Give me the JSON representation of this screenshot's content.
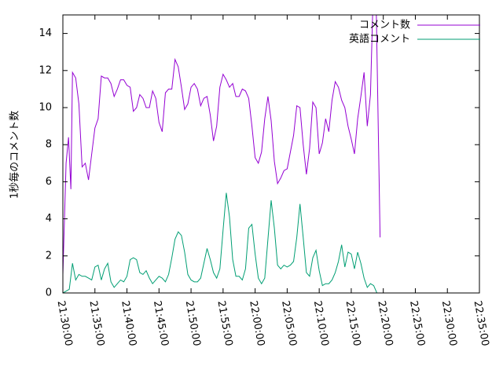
{
  "chart_data": {
    "type": "line",
    "title": "",
    "xlabel": "",
    "ylabel": "1秒毎のコメント数",
    "ylim": [
      0,
      15
    ],
    "xlim": [
      "21:30:00",
      "22:35:00"
    ],
    "grid": false,
    "legend_position": "top-right",
    "yticks": [
      "0",
      "2",
      "4",
      "6",
      "8",
      "10",
      "12",
      "14"
    ],
    "xticks": [
      "21:30:00",
      "21:35:00",
      "21:40:00",
      "21:45:00",
      "21:50:00",
      "21:55:00",
      "22:00:00",
      "22:05:00",
      "22:10:00",
      "22:15:00",
      "22:20:00",
      "22:25:00",
      "22:30:00",
      "22:35:00"
    ],
    "series": [
      {
        "name": "コメント数",
        "color": "#9400d3",
        "points": [
          [
            "21:30:00",
            1.0
          ],
          [
            "21:30:30",
            7.0
          ],
          [
            "21:30:53",
            8.4
          ],
          [
            "21:31:15",
            5.6
          ],
          [
            "21:31:30",
            11.9
          ],
          [
            "21:32:00",
            11.6
          ],
          [
            "21:32:30",
            10.2
          ],
          [
            "21:33:00",
            6.8
          ],
          [
            "21:33:30",
            7.0
          ],
          [
            "21:34:00",
            6.1
          ],
          [
            "21:34:30",
            7.5
          ],
          [
            "21:35:00",
            8.9
          ],
          [
            "21:35:30",
            9.4
          ],
          [
            "21:36:00",
            11.7
          ],
          [
            "21:36:30",
            11.6
          ],
          [
            "21:37:00",
            11.6
          ],
          [
            "21:37:30",
            11.3
          ],
          [
            "21:38:00",
            10.6
          ],
          [
            "21:38:30",
            11.0
          ],
          [
            "21:39:00",
            11.5
          ],
          [
            "21:39:30",
            11.5
          ],
          [
            "21:40:00",
            11.2
          ],
          [
            "21:40:30",
            11.1
          ],
          [
            "21:41:00",
            9.8
          ],
          [
            "21:41:30",
            10.0
          ],
          [
            "21:42:00",
            10.7
          ],
          [
            "21:42:30",
            10.5
          ],
          [
            "21:43:00",
            10.0
          ],
          [
            "21:43:30",
            10.0
          ],
          [
            "21:44:00",
            10.9
          ],
          [
            "21:44:30",
            10.5
          ],
          [
            "21:45:00",
            9.2
          ],
          [
            "21:45:30",
            8.7
          ],
          [
            "21:46:00",
            10.8
          ],
          [
            "21:46:30",
            11.0
          ],
          [
            "21:47:00",
            11.0
          ],
          [
            "21:47:30",
            12.6
          ],
          [
            "21:48:00",
            12.2
          ],
          [
            "21:48:30",
            11.1
          ],
          [
            "21:49:00",
            9.9
          ],
          [
            "21:49:30",
            10.2
          ],
          [
            "21:50:00",
            11.1
          ],
          [
            "21:50:30",
            11.3
          ],
          [
            "21:51:00",
            11.0
          ],
          [
            "21:51:30",
            10.1
          ],
          [
            "21:52:00",
            10.5
          ],
          [
            "21:52:30",
            10.6
          ],
          [
            "21:53:00",
            9.6
          ],
          [
            "21:53:30",
            8.2
          ],
          [
            "21:54:00",
            9.0
          ],
          [
            "21:54:30",
            11.1
          ],
          [
            "21:55:00",
            11.8
          ],
          [
            "21:55:30",
            11.5
          ],
          [
            "21:56:00",
            11.1
          ],
          [
            "21:56:30",
            11.3
          ],
          [
            "21:57:00",
            10.6
          ],
          [
            "21:57:30",
            10.6
          ],
          [
            "21:58:00",
            11.0
          ],
          [
            "21:58:30",
            10.9
          ],
          [
            "21:59:00",
            10.5
          ],
          [
            "21:59:30",
            9.0
          ],
          [
            "22:00:00",
            7.3
          ],
          [
            "22:00:30",
            7.0
          ],
          [
            "22:01:00",
            7.6
          ],
          [
            "22:01:30",
            9.4
          ],
          [
            "22:02:00",
            10.6
          ],
          [
            "22:02:30",
            9.3
          ],
          [
            "22:03:00",
            7.1
          ],
          [
            "22:03:30",
            5.9
          ],
          [
            "22:04:00",
            6.2
          ],
          [
            "22:04:30",
            6.6
          ],
          [
            "22:05:00",
            6.7
          ],
          [
            "22:05:30",
            7.6
          ],
          [
            "22:06:00",
            8.5
          ],
          [
            "22:06:30",
            10.1
          ],
          [
            "22:07:00",
            10.0
          ],
          [
            "22:07:30",
            8.0
          ],
          [
            "22:08:00",
            6.4
          ],
          [
            "22:08:30",
            7.8
          ],
          [
            "22:09:00",
            10.3
          ],
          [
            "22:09:30",
            10.0
          ],
          [
            "22:10:00",
            7.5
          ],
          [
            "22:10:30",
            8.1
          ],
          [
            "22:11:00",
            9.4
          ],
          [
            "22:11:30",
            8.7
          ],
          [
            "22:12:00",
            10.4
          ],
          [
            "22:12:30",
            11.4
          ],
          [
            "22:13:00",
            11.1
          ],
          [
            "22:13:30",
            10.4
          ],
          [
            "22:14:00",
            10.0
          ],
          [
            "22:14:30",
            9.0
          ],
          [
            "22:15:00",
            8.3
          ],
          [
            "22:15:30",
            7.5
          ],
          [
            "22:16:00",
            9.4
          ],
          [
            "22:16:30",
            10.6
          ],
          [
            "22:17:00",
            11.9
          ],
          [
            "22:17:30",
            9.0
          ],
          [
            "22:18:00",
            10.7
          ],
          [
            "22:18:20",
            15.0
          ],
          [
            "22:18:55",
            15.0
          ],
          [
            "22:19:30",
            3.0
          ]
        ]
      },
      {
        "name": "英語コメント",
        "color": "#009e73",
        "points": [
          [
            "21:30:00",
            0.0
          ],
          [
            "21:30:30",
            0.1
          ],
          [
            "21:31:00",
            0.2
          ],
          [
            "21:31:30",
            1.6
          ],
          [
            "21:32:00",
            0.7
          ],
          [
            "21:32:30",
            1.0
          ],
          [
            "21:33:00",
            0.9
          ],
          [
            "21:33:30",
            0.9
          ],
          [
            "21:34:00",
            0.8
          ],
          [
            "21:34:30",
            0.7
          ],
          [
            "21:35:00",
            1.4
          ],
          [
            "21:35:30",
            1.5
          ],
          [
            "21:36:00",
            0.7
          ],
          [
            "21:36:30",
            1.3
          ],
          [
            "21:37:00",
            1.6
          ],
          [
            "21:37:30",
            0.6
          ],
          [
            "21:38:00",
            0.3
          ],
          [
            "21:38:30",
            0.5
          ],
          [
            "21:39:00",
            0.7
          ],
          [
            "21:39:30",
            0.6
          ],
          [
            "21:40:00",
            0.9
          ],
          [
            "21:40:30",
            1.8
          ],
          [
            "21:41:00",
            1.9
          ],
          [
            "21:41:30",
            1.8
          ],
          [
            "21:42:00",
            1.1
          ],
          [
            "21:42:30",
            1.0
          ],
          [
            "21:43:00",
            1.2
          ],
          [
            "21:43:30",
            0.8
          ],
          [
            "21:44:00",
            0.5
          ],
          [
            "21:44:30",
            0.7
          ],
          [
            "21:45:00",
            0.9
          ],
          [
            "21:45:30",
            0.8
          ],
          [
            "21:46:00",
            0.6
          ],
          [
            "21:46:30",
            1.0
          ],
          [
            "21:47:00",
            1.9
          ],
          [
            "21:47:30",
            2.9
          ],
          [
            "21:48:00",
            3.3
          ],
          [
            "21:48:30",
            3.1
          ],
          [
            "21:49:00",
            2.2
          ],
          [
            "21:49:30",
            1.0
          ],
          [
            "21:50:00",
            0.7
          ],
          [
            "21:50:30",
            0.6
          ],
          [
            "21:51:00",
            0.6
          ],
          [
            "21:51:30",
            0.8
          ],
          [
            "21:52:00",
            1.6
          ],
          [
            "21:52:30",
            2.4
          ],
          [
            "21:53:00",
            1.8
          ],
          [
            "21:53:30",
            1.1
          ],
          [
            "21:54:00",
            0.8
          ],
          [
            "21:54:30",
            1.3
          ],
          [
            "21:55:00",
            3.4
          ],
          [
            "21:55:30",
            5.4
          ],
          [
            "21:56:00",
            4.1
          ],
          [
            "21:56:30",
            1.8
          ],
          [
            "21:57:00",
            0.9
          ],
          [
            "21:57:30",
            0.9
          ],
          [
            "21:58:00",
            0.7
          ],
          [
            "21:58:30",
            1.3
          ],
          [
            "21:59:00",
            3.5
          ],
          [
            "21:59:30",
            3.7
          ],
          [
            "22:00:00",
            2.1
          ],
          [
            "22:00:30",
            0.8
          ],
          [
            "22:01:00",
            0.5
          ],
          [
            "22:01:30",
            0.8
          ],
          [
            "22:02:00",
            2.9
          ],
          [
            "22:02:30",
            5.0
          ],
          [
            "22:03:00",
            3.5
          ],
          [
            "22:03:30",
            1.5
          ],
          [
            "22:04:00",
            1.3
          ],
          [
            "22:04:30",
            1.5
          ],
          [
            "22:05:00",
            1.4
          ],
          [
            "22:05:30",
            1.5
          ],
          [
            "22:06:00",
            1.7
          ],
          [
            "22:06:30",
            3.0
          ],
          [
            "22:07:00",
            4.8
          ],
          [
            "22:07:30",
            3.0
          ],
          [
            "22:08:00",
            1.1
          ],
          [
            "22:08:30",
            0.9
          ],
          [
            "22:09:00",
            1.9
          ],
          [
            "22:09:30",
            2.3
          ],
          [
            "22:10:00",
            1.2
          ],
          [
            "22:10:30",
            0.4
          ],
          [
            "22:11:00",
            0.5
          ],
          [
            "22:11:30",
            0.5
          ],
          [
            "22:12:00",
            0.7
          ],
          [
            "22:12:30",
            1.1
          ],
          [
            "22:13:00",
            1.7
          ],
          [
            "22:13:30",
            2.6
          ],
          [
            "22:14:00",
            1.4
          ],
          [
            "22:14:30",
            2.2
          ],
          [
            "22:15:00",
            2.1
          ],
          [
            "22:15:30",
            1.3
          ],
          [
            "22:16:00",
            2.2
          ],
          [
            "22:16:30",
            1.6
          ],
          [
            "22:17:00",
            0.8
          ],
          [
            "22:17:30",
            0.3
          ],
          [
            "22:18:00",
            0.5
          ],
          [
            "22:18:30",
            0.4
          ],
          [
            "22:19:00",
            0.0
          ]
        ]
      }
    ]
  }
}
